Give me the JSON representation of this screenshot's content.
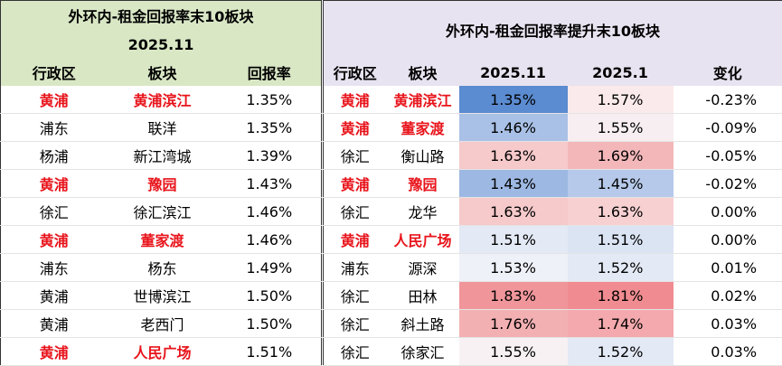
{
  "left": {
    "title": "外环内-租金回报率末10板块",
    "subtitle": "2025.11",
    "columns": [
      "行政区",
      "板块",
      "回报率"
    ],
    "rows": [
      [
        "黄浦",
        "黄浦滨江",
        "1.35%"
      ],
      [
        "浦东",
        "联洋",
        "1.35%"
      ],
      [
        "杨浦",
        "新江湾城",
        "1.39%"
      ],
      [
        "黄浦",
        "豫园",
        "1.43%"
      ],
      [
        "徐汇",
        "徐汇滨江",
        "1.46%"
      ],
      [
        "黄浦",
        "董家渡",
        "1.46%"
      ],
      [
        "浦东",
        "杨东",
        "1.49%"
      ],
      [
        "黄浦",
        "世博滨江",
        "1.50%"
      ],
      [
        "黄浦",
        "老西门",
        "1.50%"
      ],
      [
        "黄浦",
        "人民广场",
        "1.51%"
      ]
    ]
  },
  "right": {
    "title": "外环内-租金回报率提升末10板块",
    "columns": [
      "行政区",
      "板块",
      "2025.11",
      "2025.1",
      "变化"
    ],
    "rows": [
      [
        "黄浦",
        "黄浦滨江",
        "1.35%",
        "1.57%",
        "-0.23%"
      ],
      [
        "黄浦",
        "董家渡",
        "1.46%",
        "1.55%",
        "-0.09%"
      ],
      [
        "徐汇",
        "衡山路",
        "1.63%",
        "1.69%",
        "-0.05%"
      ],
      [
        "黄浦",
        "豫园",
        "1.43%",
        "1.45%",
        "-0.02%"
      ],
      [
        "徐汇",
        "龙华",
        "1.63%",
        "1.63%",
        "0.00%"
      ],
      [
        "黄浦",
        "人民广场",
        "1.51%",
        "1.51%",
        "0.00%"
      ],
      [
        "浦东",
        "源深",
        "1.53%",
        "1.52%",
        "0.01%"
      ],
      [
        "徐汇",
        "田林",
        "1.83%",
        "1.81%",
        "0.02%"
      ],
      [
        "徐汇",
        "斜土路",
        "1.76%",
        "1.74%",
        "0.03%"
      ],
      [
        "徐汇",
        "徐家汇",
        "1.55%",
        "1.52%",
        "0.03%"
      ]
    ]
  }
}
